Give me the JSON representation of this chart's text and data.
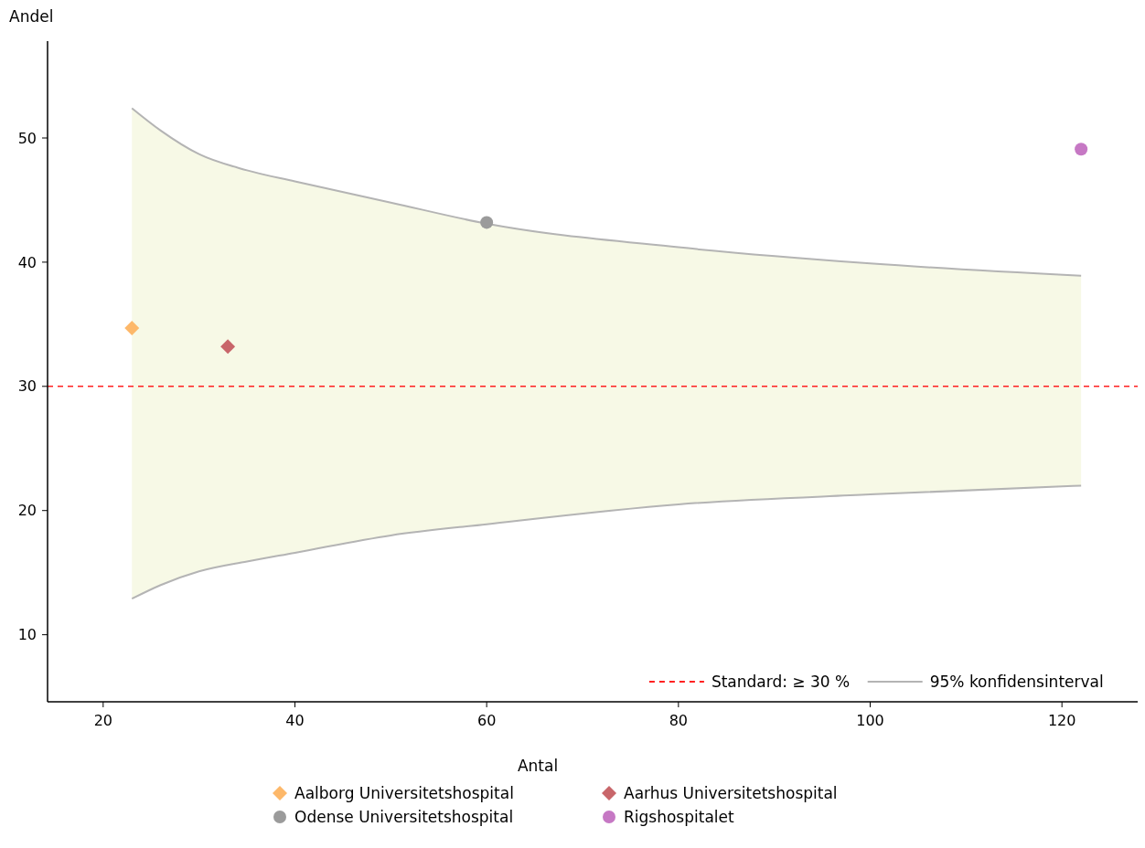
{
  "chart_data": {
    "type": "scatter",
    "xlabel": "Antal",
    "ylabel": "Andel",
    "xlim": [
      14.2,
      127.9
    ],
    "ylim": [
      4.6,
      57.8
    ],
    "xticks": [
      20,
      40,
      60,
      80,
      100,
      120
    ],
    "yticks": [
      10,
      20,
      30,
      40,
      50
    ],
    "grid": false,
    "legend": "bottom",
    "ref_lines": [
      {
        "axis": "y",
        "value": 30,
        "label": "Standard: ≥ 30 %",
        "color": "#ff2020",
        "line_style": "dashed"
      }
    ],
    "series": [
      {
        "type": "line",
        "color": "#b4b4b4",
        "x": [
          23,
          26,
          30,
          35,
          40,
          50,
          60,
          80,
          100,
          122
        ],
        "values": [
          12.9,
          14.0,
          15.1,
          15.9,
          16.6,
          18.0,
          18.9,
          20.5,
          21.3,
          22.0
        ]
      },
      {
        "type": "line",
        "name": "95% konfidensinterval",
        "color": "#b4b4b4",
        "x": [
          23,
          26,
          30,
          35,
          40,
          50,
          60,
          80,
          100,
          122
        ],
        "values": [
          52.4,
          50.6,
          48.7,
          47.4,
          46.5,
          44.8,
          43.1,
          41.2,
          39.9,
          38.9
        ],
        "lower": [
          12.9,
          14.0,
          15.1,
          15.9,
          16.6,
          18.0,
          18.9,
          20.5,
          21.3,
          22.0
        ],
        "upper": [
          52.4,
          50.6,
          48.7,
          47.4,
          46.5,
          44.8,
          43.1,
          41.2,
          39.9,
          38.9
        ]
      },
      {
        "name": "Aalborg Universitetshospital",
        "color": "#fdb86a",
        "marker": "diamond",
        "x": [
          23
        ],
        "values": [
          34.7
        ]
      },
      {
        "name": "Aarhus Universitetshospital",
        "color": "#c8666a",
        "marker": "diamond",
        "x": [
          33
        ],
        "values": [
          33.2
        ]
      },
      {
        "name": "Odense Universitetshospital",
        "color": "#9b9b9b",
        "marker": "circle",
        "x": [
          60
        ],
        "values": [
          43.2
        ]
      },
      {
        "name": "Rigshospitalet",
        "color": "#c678c4",
        "marker": "circle",
        "x": [
          122
        ],
        "values": [
          49.1
        ]
      }
    ]
  }
}
